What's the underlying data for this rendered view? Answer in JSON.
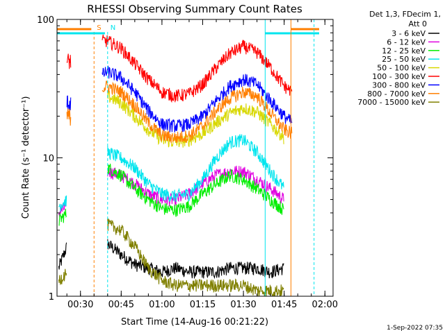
{
  "chart_data": {
    "type": "line",
    "title": "RHESSI Observing Summary Count Rates",
    "xlabel": "Start Time (14-Aug-16 00:21:22)",
    "ylabel": "Count Rate (s⁻¹ detector⁻¹)",
    "x_ticks": [
      "00:30",
      "00:45",
      "01:00",
      "01:15",
      "01:30",
      "01:45",
      "02:00"
    ],
    "y_ticks": [
      "1",
      "10",
      "100"
    ],
    "xlim": [
      "00:21:22",
      "02:03:00"
    ],
    "ylim": [
      1,
      100
    ],
    "y_scale": "log",
    "legend_header": [
      "Det 1,3, FDecim 1,",
      "Att 0"
    ],
    "legend_position": "right",
    "footer": "1-Sep-2022 07:35",
    "markers": [
      {
        "label": "S",
        "time": "00:35:00",
        "color": "#ff7f00"
      },
      {
        "label": "N",
        "time": "00:40:00",
        "color": "#00e5ee"
      }
    ],
    "x_times": [
      "00:22",
      "00:25",
      "00:35",
      "00:38",
      "00:40",
      "00:45",
      "00:50",
      "00:55",
      "01:00",
      "01:05",
      "01:10",
      "01:15",
      "01:20",
      "01:25",
      "01:30",
      "01:35",
      "01:40",
      "01:45",
      "01:48"
    ],
    "series": [
      {
        "name": "3 - 6 keV",
        "color": "#000000",
        "values": [
          1.6,
          2.3,
          null,
          null,
          2.4,
          2.0,
          1.7,
          1.6,
          1.5,
          1.6,
          1.5,
          1.5,
          1.5,
          1.6,
          1.6,
          1.6,
          1.5,
          1.6,
          null
        ]
      },
      {
        "name": "6 - 12 keV",
        "color": "#e000e0",
        "values": [
          4.0,
          4.5,
          null,
          null,
          8.0,
          7.5,
          6.5,
          5.5,
          5.0,
          5.0,
          5.5,
          6.5,
          7.5,
          8.0,
          8.0,
          7.0,
          6.0,
          5.0,
          null
        ]
      },
      {
        "name": "12 - 25 keV",
        "color": "#00ee00",
        "values": [
          3.5,
          4.0,
          null,
          null,
          8.5,
          7.5,
          6.0,
          5.0,
          4.3,
          4.2,
          4.5,
          5.5,
          6.5,
          7.5,
          7.0,
          6.0,
          5.0,
          4.2,
          null
        ]
      },
      {
        "name": "25 - 50 keV",
        "color": "#00e5ee",
        "values": [
          4.5,
          5.0,
          null,
          null,
          11.0,
          10.0,
          8.5,
          6.5,
          5.5,
          5.3,
          5.5,
          7.0,
          10.0,
          13.0,
          13.5,
          11.0,
          8.0,
          6.0,
          null
        ]
      },
      {
        "name": "50 - 100 keV",
        "color": "#d8d800",
        "values": [
          null,
          null,
          null,
          null,
          28.0,
          25.0,
          20.0,
          16.0,
          13.5,
          13.0,
          13.5,
          15.0,
          18.0,
          21.0,
          23.0,
          21.5,
          17.5,
          14.0,
          null
        ]
      },
      {
        "name": "100 - 300 keV",
        "color": "#ff0000",
        "values": [
          null,
          50.0,
          null,
          70.0,
          70.0,
          62.0,
          48.0,
          37.0,
          30.0,
          28.0,
          29.0,
          34.0,
          45.0,
          57.0,
          64.0,
          58.0,
          45.0,
          33.0,
          30.0
        ]
      },
      {
        "name": "300 - 800 keV",
        "color": "#0000ff",
        "values": [
          null,
          25.0,
          null,
          40.0,
          42.0,
          38.0,
          30.0,
          22.0,
          17.5,
          17.0,
          17.5,
          20.0,
          26.0,
          33.0,
          37.0,
          34.0,
          26.0,
          20.0,
          18.0
        ]
      },
      {
        "name": "800 - 7000 keV",
        "color": "#ff7f00",
        "values": [
          null,
          20.0,
          null,
          32.0,
          33.0,
          30.0,
          24.0,
          18.0,
          14.5,
          14.0,
          14.5,
          17.0,
          22.0,
          27.0,
          30.0,
          28.0,
          21.0,
          16.0,
          15.0
        ]
      },
      {
        "name": "7000 - 15000 keV",
        "color": "#808000",
        "values": [
          1.3,
          1.5,
          null,
          null,
          3.3,
          3.0,
          2.3,
          1.6,
          1.3,
          1.2,
          1.2,
          1.2,
          1.2,
          1.2,
          1.2,
          1.1,
          1.1,
          1.1,
          null
        ]
      }
    ]
  }
}
